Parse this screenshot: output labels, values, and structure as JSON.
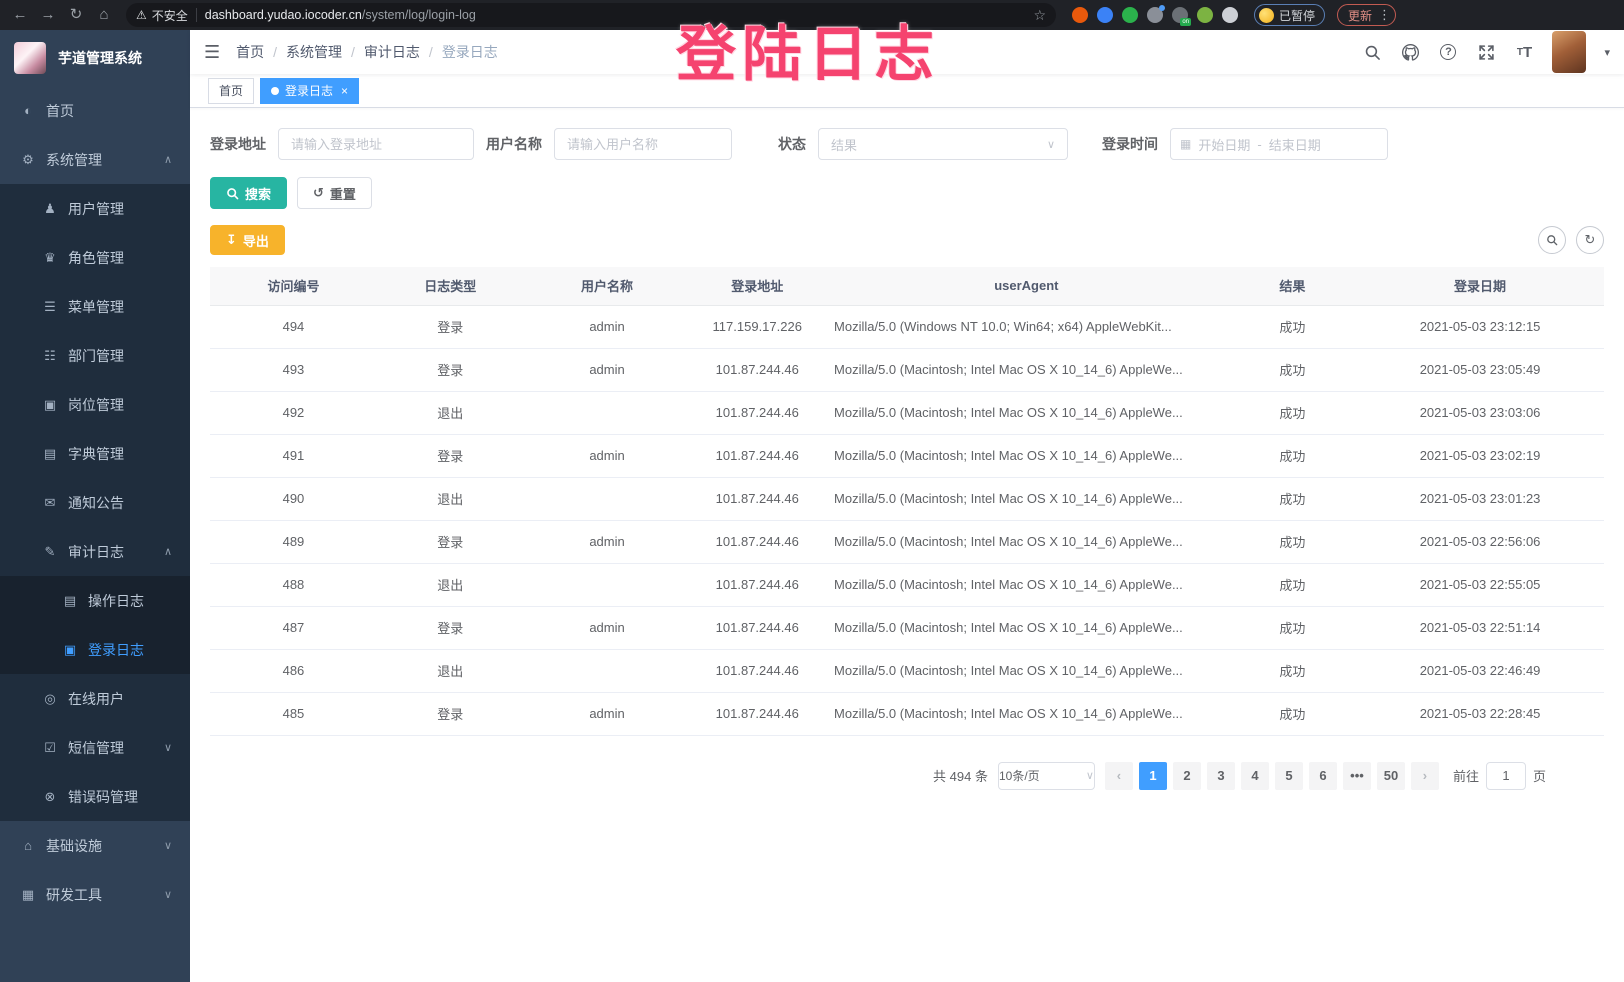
{
  "colors": {
    "accent": "#409EFF",
    "search_button": "#27B5A2",
    "export_button": "#F7B32B",
    "sidebar_bg": "#304156",
    "submenu_bg": "#1F2D3D",
    "watermark": "#F5436F"
  },
  "browser": {
    "security_label": "不安全",
    "url_host": "dashboard.yudao.iocoder.cn",
    "url_path": "/system/log/login-log",
    "paused_badge_label": "已暂停",
    "update_button_label": "更新",
    "extensions": [
      {
        "icon": "extension-orange-icon",
        "color": "#E8590C",
        "badge": ""
      },
      {
        "icon": "extension-blue-gem-icon",
        "color": "#3B82F6",
        "badge": ""
      },
      {
        "icon": "extension-green-circle-icon",
        "color": "#2BB24C",
        "badge": ""
      },
      {
        "icon": "extension-grid-icon",
        "color": "#8a8f98",
        "badge": "bluedot"
      },
      {
        "icon": "extension-list-icon",
        "color": "#6b7076",
        "badge": "on"
      },
      {
        "icon": "extension-leaf-icon",
        "color": "#7CB342",
        "badge": ""
      },
      {
        "icon": "extension-puzzle-icon",
        "color": "#cdd0d5",
        "badge": ""
      }
    ]
  },
  "watermark_text": "登陆日志",
  "sidebar": {
    "title": "芋道管理系统",
    "items": [
      {
        "label": "首页",
        "icon": "dashboard-icon",
        "level": 0
      },
      {
        "label": "系统管理",
        "icon": "gear-icon",
        "level": 0,
        "arrow": "up"
      },
      {
        "label": "用户管理",
        "icon": "user-icon",
        "level": 1
      },
      {
        "label": "角色管理",
        "icon": "role-icon",
        "level": 1
      },
      {
        "label": "菜单管理",
        "icon": "menu-list-icon",
        "level": 1
      },
      {
        "label": "部门管理",
        "icon": "dept-tree-icon",
        "level": 1
      },
      {
        "label": "岗位管理",
        "icon": "post-badge-icon",
        "level": 1
      },
      {
        "label": "字典管理",
        "icon": "dict-book-icon",
        "level": 1
      },
      {
        "label": "通知公告",
        "icon": "notice-icon",
        "level": 1
      },
      {
        "label": "审计日志",
        "icon": "audit-log-icon",
        "level": 1,
        "arrow": "up"
      },
      {
        "label": "操作日志",
        "icon": "operate-log-icon",
        "level": 2
      },
      {
        "label": "登录日志",
        "icon": "login-log-icon",
        "level": 2,
        "active": true
      },
      {
        "label": "在线用户",
        "icon": "online-user-icon",
        "level": 1
      },
      {
        "label": "短信管理",
        "icon": "sms-icon",
        "level": 1,
        "arrow": "down"
      },
      {
        "label": "错误码管理",
        "icon": "error-code-icon",
        "level": 1
      },
      {
        "label": "基础设施",
        "icon": "infra-icon",
        "level": 0,
        "arrow": "down"
      },
      {
        "label": "研发工具",
        "icon": "dev-tools-icon",
        "level": 0,
        "arrow": "down"
      }
    ]
  },
  "breadcrumb": [
    "首页",
    "系统管理",
    "审计日志",
    "登录日志"
  ],
  "tabs": [
    {
      "label": "首页",
      "active": false
    },
    {
      "label": "登录日志",
      "active": true
    }
  ],
  "filters": {
    "login_address_label": "登录地址",
    "login_address_placeholder": "请输入登录地址",
    "username_label": "用户名称",
    "username_placeholder": "请输入用户名称",
    "status_label": "状态",
    "status_placeholder": "结果",
    "login_time_label": "登录时间",
    "date_start_placeholder": "开始日期",
    "date_separator": "-",
    "date_end_placeholder": "结束日期",
    "search_button_label": "搜索",
    "reset_button_label": "重置"
  },
  "toolbar": {
    "export_button_label": "导出"
  },
  "table": {
    "headers": [
      "访问编号",
      "日志类型",
      "用户名称",
      "登录地址",
      "userAgent",
      "结果",
      "登录日期"
    ],
    "rows": [
      [
        "494",
        "登录",
        "admin",
        "117.159.17.226",
        "Mozilla/5.0 (Windows NT 10.0; Win64; x64) AppleWebKit...",
        "成功",
        "2021-05-03 23:12:15"
      ],
      [
        "493",
        "登录",
        "admin",
        "101.87.244.46",
        "Mozilla/5.0 (Macintosh; Intel Mac OS X 10_14_6) AppleWe...",
        "成功",
        "2021-05-03 23:05:49"
      ],
      [
        "492",
        "退出",
        "",
        "101.87.244.46",
        "Mozilla/5.0 (Macintosh; Intel Mac OS X 10_14_6) AppleWe...",
        "成功",
        "2021-05-03 23:03:06"
      ],
      [
        "491",
        "登录",
        "admin",
        "101.87.244.46",
        "Mozilla/5.0 (Macintosh; Intel Mac OS X 10_14_6) AppleWe...",
        "成功",
        "2021-05-03 23:02:19"
      ],
      [
        "490",
        "退出",
        "",
        "101.87.244.46",
        "Mozilla/5.0 (Macintosh; Intel Mac OS X 10_14_6) AppleWe...",
        "成功",
        "2021-05-03 23:01:23"
      ],
      [
        "489",
        "登录",
        "admin",
        "101.87.244.46",
        "Mozilla/5.0 (Macintosh; Intel Mac OS X 10_14_6) AppleWe...",
        "成功",
        "2021-05-03 22:56:06"
      ],
      [
        "488",
        "退出",
        "",
        "101.87.244.46",
        "Mozilla/5.0 (Macintosh; Intel Mac OS X 10_14_6) AppleWe...",
        "成功",
        "2021-05-03 22:55:05"
      ],
      [
        "487",
        "登录",
        "admin",
        "101.87.244.46",
        "Mozilla/5.0 (Macintosh; Intel Mac OS X 10_14_6) AppleWe...",
        "成功",
        "2021-05-03 22:51:14"
      ],
      [
        "486",
        "退出",
        "",
        "101.87.244.46",
        "Mozilla/5.0 (Macintosh; Intel Mac OS X 10_14_6) AppleWe...",
        "成功",
        "2021-05-03 22:46:49"
      ],
      [
        "485",
        "登录",
        "admin",
        "101.87.244.46",
        "Mozilla/5.0 (Macintosh; Intel Mac OS X 10_14_6) AppleWe...",
        "成功",
        "2021-05-03 22:28:45"
      ]
    ]
  },
  "pagination": {
    "total_text": "共 494 条",
    "page_size_label": "10条/页",
    "pages": [
      "1",
      "2",
      "3",
      "4",
      "5",
      "6",
      "...",
      "50"
    ],
    "active_page": "1",
    "goto_label": "前往",
    "goto_value": "1",
    "goto_suffix_label": "页"
  }
}
